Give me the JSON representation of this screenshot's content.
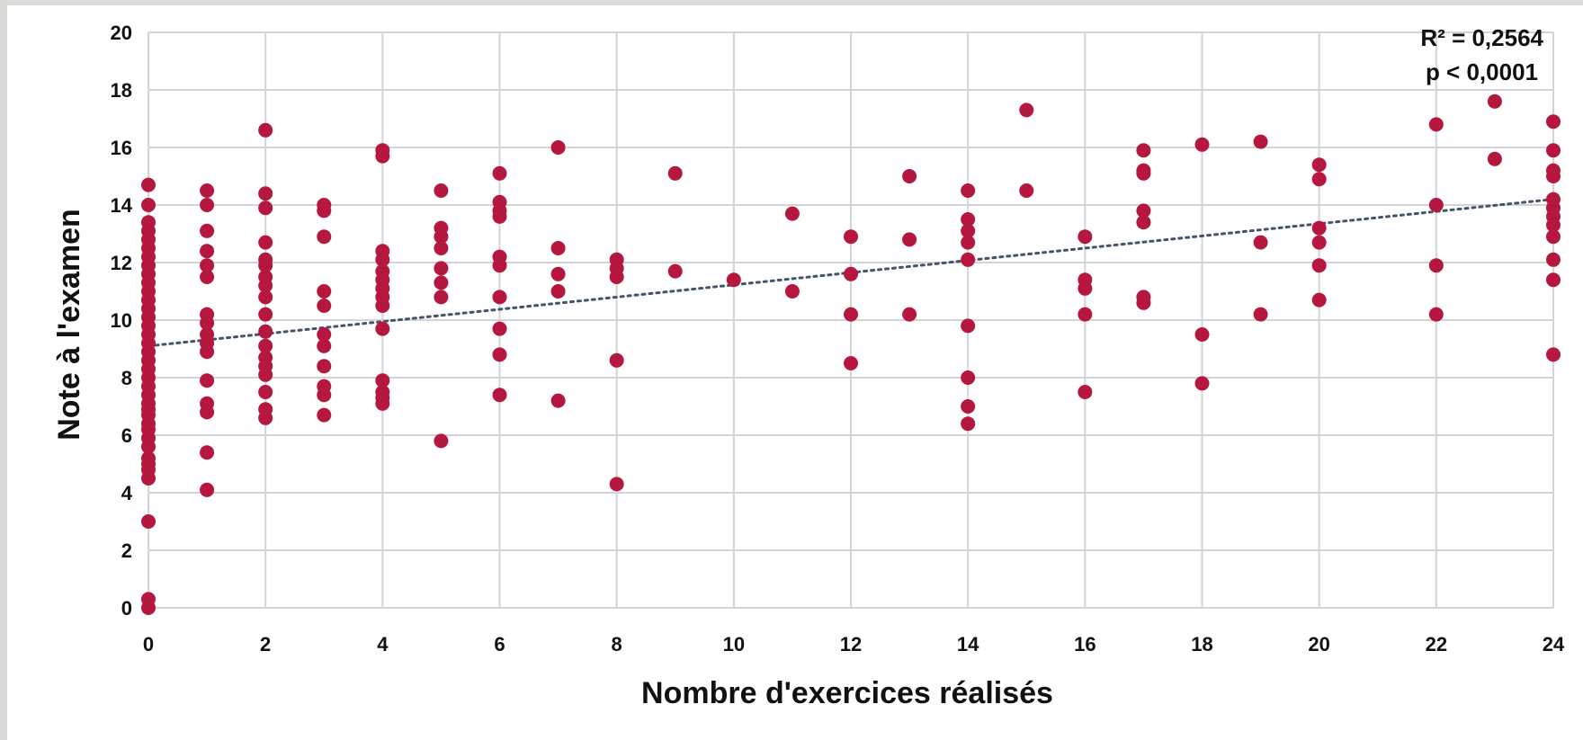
{
  "chart_data": {
    "type": "scatter",
    "title": "",
    "xlabel": "Nombre d'exercices réalisés",
    "ylabel": "Note à l'examen",
    "xlim": [
      0,
      24
    ],
    "ylim": [
      0,
      20
    ],
    "xticks": [
      0,
      2,
      4,
      6,
      8,
      10,
      12,
      14,
      16,
      18,
      20,
      22,
      24
    ],
    "yticks": [
      0,
      2,
      4,
      6,
      8,
      10,
      12,
      14,
      16,
      18,
      20
    ],
    "grid": true,
    "point_color": "#b5173f",
    "trendline": {
      "type": "linear",
      "x": [
        0,
        24
      ],
      "y": [
        9.1,
        14.2
      ],
      "style": "dotted",
      "color": "#44546a"
    },
    "annotations": [
      "R² = 0,2564",
      "p < 0,0001"
    ],
    "points": [
      [
        0,
        0.0
      ],
      [
        0,
        0.3
      ],
      [
        0,
        3.0
      ],
      [
        0,
        4.5
      ],
      [
        0,
        4.8
      ],
      [
        0,
        5.0
      ],
      [
        0,
        5.2
      ],
      [
        0,
        5.6
      ],
      [
        0,
        5.9
      ],
      [
        0,
        6.2
      ],
      [
        0,
        6.4
      ],
      [
        0,
        6.7
      ],
      [
        0,
        6.9
      ],
      [
        0,
        7.1
      ],
      [
        0,
        7.4
      ],
      [
        0,
        7.7
      ],
      [
        0,
        8.0
      ],
      [
        0,
        8.3
      ],
      [
        0,
        8.6
      ],
      [
        0,
        8.9
      ],
      [
        0,
        9.2
      ],
      [
        0,
        9.5
      ],
      [
        0,
        9.8
      ],
      [
        0,
        10.1
      ],
      [
        0,
        10.4
      ],
      [
        0,
        10.7
      ],
      [
        0,
        11.0
      ],
      [
        0,
        11.3
      ],
      [
        0,
        11.6
      ],
      [
        0,
        11.9
      ],
      [
        0,
        12.2
      ],
      [
        0,
        12.5
      ],
      [
        0,
        12.8
      ],
      [
        0,
        13.1
      ],
      [
        0,
        13.4
      ],
      [
        0,
        14.0
      ],
      [
        0,
        14.7
      ],
      [
        1,
        4.1
      ],
      [
        1,
        5.4
      ],
      [
        1,
        6.8
      ],
      [
        1,
        7.1
      ],
      [
        1,
        7.9
      ],
      [
        1,
        8.9
      ],
      [
        1,
        9.2
      ],
      [
        1,
        9.5
      ],
      [
        1,
        9.9
      ],
      [
        1,
        10.2
      ],
      [
        1,
        11.5
      ],
      [
        1,
        11.9
      ],
      [
        1,
        12.4
      ],
      [
        1,
        13.1
      ],
      [
        1,
        14.0
      ],
      [
        1,
        14.5
      ],
      [
        2,
        6.6
      ],
      [
        2,
        6.9
      ],
      [
        2,
        7.5
      ],
      [
        2,
        8.1
      ],
      [
        2,
        8.4
      ],
      [
        2,
        8.7
      ],
      [
        2,
        9.1
      ],
      [
        2,
        9.6
      ],
      [
        2,
        10.2
      ],
      [
        2,
        10.8
      ],
      [
        2,
        11.2
      ],
      [
        2,
        11.5
      ],
      [
        2,
        11.9
      ],
      [
        2,
        12.1
      ],
      [
        2,
        12.7
      ],
      [
        2,
        13.9
      ],
      [
        2,
        14.4
      ],
      [
        2,
        16.6
      ],
      [
        3,
        6.7
      ],
      [
        3,
        7.4
      ],
      [
        3,
        7.7
      ],
      [
        3,
        8.4
      ],
      [
        3,
        9.1
      ],
      [
        3,
        9.5
      ],
      [
        3,
        10.5
      ],
      [
        3,
        11.0
      ],
      [
        3,
        12.9
      ],
      [
        3,
        13.8
      ],
      [
        3,
        14.0
      ],
      [
        4,
        7.1
      ],
      [
        4,
        7.3
      ],
      [
        4,
        7.5
      ],
      [
        4,
        7.9
      ],
      [
        4,
        9.7
      ],
      [
        4,
        10.5
      ],
      [
        4,
        10.8
      ],
      [
        4,
        11.1
      ],
      [
        4,
        11.4
      ],
      [
        4,
        11.7
      ],
      [
        4,
        12.1
      ],
      [
        4,
        12.4
      ],
      [
        4,
        15.7
      ],
      [
        4,
        15.9
      ],
      [
        5,
        5.8
      ],
      [
        5,
        10.8
      ],
      [
        5,
        11.3
      ],
      [
        5,
        11.8
      ],
      [
        5,
        12.5
      ],
      [
        5,
        12.9
      ],
      [
        5,
        13.2
      ],
      [
        5,
        14.5
      ],
      [
        6,
        7.4
      ],
      [
        6,
        8.8
      ],
      [
        6,
        9.7
      ],
      [
        6,
        10.8
      ],
      [
        6,
        11.9
      ],
      [
        6,
        12.2
      ],
      [
        6,
        13.6
      ],
      [
        6,
        13.8
      ],
      [
        6,
        14.1
      ],
      [
        6,
        15.1
      ],
      [
        7,
        7.2
      ],
      [
        7,
        11.0
      ],
      [
        7,
        11.6
      ],
      [
        7,
        12.5
      ],
      [
        7,
        16.0
      ],
      [
        8,
        4.3
      ],
      [
        8,
        8.6
      ],
      [
        8,
        11.5
      ],
      [
        8,
        11.8
      ],
      [
        8,
        12.1
      ],
      [
        9,
        11.7
      ],
      [
        9,
        15.1
      ],
      [
        10,
        11.4
      ],
      [
        11,
        11.0
      ],
      [
        11,
        13.7
      ],
      [
        12,
        8.5
      ],
      [
        12,
        10.2
      ],
      [
        12,
        11.6
      ],
      [
        12,
        12.9
      ],
      [
        13,
        10.2
      ],
      [
        13,
        12.8
      ],
      [
        13,
        15.0
      ],
      [
        14,
        6.4
      ],
      [
        14,
        7.0
      ],
      [
        14,
        8.0
      ],
      [
        14,
        9.8
      ],
      [
        14,
        12.1
      ],
      [
        14,
        12.7
      ],
      [
        14,
        13.1
      ],
      [
        14,
        13.5
      ],
      [
        14,
        14.5
      ],
      [
        15,
        14.5
      ],
      [
        15,
        17.3
      ],
      [
        16,
        7.5
      ],
      [
        16,
        10.2
      ],
      [
        16,
        11.1
      ],
      [
        16,
        11.4
      ],
      [
        16,
        12.9
      ],
      [
        17,
        10.6
      ],
      [
        17,
        10.8
      ],
      [
        17,
        13.4
      ],
      [
        17,
        13.8
      ],
      [
        17,
        15.1
      ],
      [
        17,
        15.2
      ],
      [
        17,
        15.9
      ],
      [
        18,
        7.8
      ],
      [
        18,
        9.5
      ],
      [
        18,
        16.1
      ],
      [
        19,
        10.2
      ],
      [
        19,
        12.7
      ],
      [
        19,
        16.2
      ],
      [
        20,
        10.7
      ],
      [
        20,
        11.9
      ],
      [
        20,
        12.7
      ],
      [
        20,
        13.2
      ],
      [
        20,
        14.9
      ],
      [
        20,
        15.4
      ],
      [
        22,
        10.2
      ],
      [
        22,
        11.9
      ],
      [
        22,
        14.0
      ],
      [
        22,
        16.8
      ],
      [
        23,
        15.6
      ],
      [
        23,
        17.6
      ],
      [
        24,
        8.8
      ],
      [
        24,
        11.4
      ],
      [
        24,
        12.1
      ],
      [
        24,
        12.9
      ],
      [
        24,
        13.3
      ],
      [
        24,
        13.6
      ],
      [
        24,
        13.9
      ],
      [
        24,
        14.2
      ],
      [
        24,
        15.0
      ],
      [
        24,
        15.2
      ],
      [
        24,
        15.9
      ],
      [
        24,
        16.9
      ]
    ]
  }
}
